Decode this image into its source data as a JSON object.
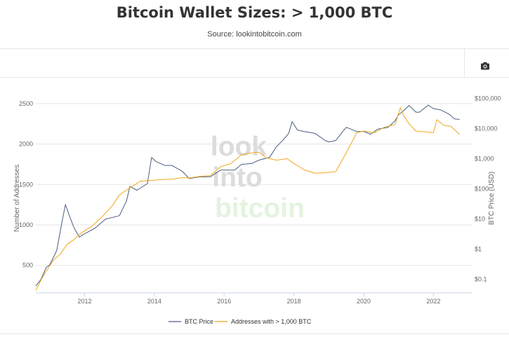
{
  "page": {
    "title": "Bitcoin Wallet Sizes: > 1,000 BTC",
    "source": "Source: lookintobitcoin.com",
    "camera_icon": "camera-icon"
  },
  "watermark": {
    "line1": "look",
    "line2": "into",
    "line3": "bitcoin"
  },
  "colors": {
    "btc_price": "#4a5d80",
    "addresses": "#f2a71b",
    "watermark": "#dcdcdc",
    "watermark_green": "#e3f3df"
  },
  "chart_data": {
    "type": "line",
    "xlabel": "",
    "ylabel": "Number of Addresses",
    "y2label": "BTC Price (USD)",
    "x_ticks": [
      "2012",
      "2014",
      "2016",
      "2018",
      "2020",
      "2022"
    ],
    "y_ticks": [
      "500",
      "1000",
      "1500",
      "2000",
      "2500"
    ],
    "y2_ticks": [
      "$0.1",
      "$1",
      "$10",
      "$100",
      "$1,000",
      "$10,000",
      "$100,000"
    ],
    "xlim": [
      2010.6,
      2023.1
    ],
    "ylim": [
      160,
      2620
    ],
    "y2lim_log10": [
      -1.45,
      5.15
    ],
    "y2_scale": "log",
    "grid": "horizontal",
    "legend_position": "bottom-center",
    "series": [
      {
        "name": "BTC Price",
        "axis": "right",
        "x": [
          2010.6,
          2010.75,
          2010.9,
          2011.0,
          2011.2,
          2011.35,
          2011.45,
          2011.55,
          2011.7,
          2011.85,
          2011.95,
          2012.3,
          2012.6,
          2012.9,
          2013.0,
          2013.2,
          2013.3,
          2013.5,
          2013.8,
          2013.92,
          2014.05,
          2014.3,
          2014.5,
          2014.8,
          2015.0,
          2015.3,
          2015.6,
          2015.9,
          2016.3,
          2016.5,
          2016.8,
          2017.0,
          2017.3,
          2017.5,
          2017.7,
          2017.85,
          2017.95,
          2018.1,
          2018.3,
          2018.6,
          2018.9,
          2019.0,
          2019.2,
          2019.4,
          2019.5,
          2019.8,
          2020.0,
          2020.2,
          2020.4,
          2020.7,
          2020.9,
          2021.0,
          2021.1,
          2021.3,
          2021.5,
          2021.6,
          2021.85,
          2022.0,
          2022.2,
          2022.45,
          2022.6,
          2022.75
        ],
        "values": [
          0.06,
          0.1,
          0.25,
          0.3,
          0.9,
          8,
          30,
          14,
          5,
          2.5,
          3,
          5,
          10,
          12,
          13,
          40,
          120,
          90,
          150,
          1100,
          800,
          600,
          600,
          380,
          220,
          250,
          250,
          420,
          420,
          650,
          700,
          900,
          1100,
          2500,
          4300,
          7000,
          17000,
          9000,
          8000,
          7000,
          4000,
          3600,
          4000,
          8000,
          11000,
          8000,
          8000,
          6500,
          9500,
          11000,
          18000,
          29000,
          35000,
          58000,
          35000,
          35000,
          60000,
          46000,
          42000,
          30000,
          21000,
          20000
        ]
      },
      {
        "name": "Addresses with > 1,000 BTC",
        "axis": "left",
        "x": [
          2010.6,
          2010.75,
          2010.9,
          2011.1,
          2011.3,
          2011.5,
          2011.7,
          2011.9,
          2012.2,
          2012.5,
          2012.8,
          2013.0,
          2013.3,
          2013.6,
          2013.9,
          2014.2,
          2014.5,
          2014.8,
          2015.0,
          2015.3,
          2015.6,
          2015.9,
          2016.2,
          2016.5,
          2016.8,
          2017.0,
          2017.2,
          2017.5,
          2017.8,
          2018.0,
          2018.3,
          2018.6,
          2018.9,
          2019.2,
          2019.5,
          2019.8,
          2020.0,
          2020.3,
          2020.6,
          2020.9,
          2021.05,
          2021.15,
          2021.3,
          2021.5,
          2021.8,
          2022.0,
          2022.1,
          2022.3,
          2022.5,
          2022.75
        ],
        "values": [
          190,
          320,
          430,
          560,
          640,
          760,
          820,
          900,
          980,
          1100,
          1240,
          1370,
          1460,
          1540,
          1550,
          1560,
          1565,
          1585,
          1580,
          1600,
          1610,
          1720,
          1760,
          1870,
          1890,
          1900,
          1830,
          1800,
          1820,
          1760,
          1680,
          1640,
          1645,
          1660,
          1890,
          2140,
          2160,
          2140,
          2210,
          2240,
          2450,
          2350,
          2250,
          2160,
          2150,
          2140,
          2300,
          2230,
          2220,
          2120
        ]
      }
    ]
  }
}
